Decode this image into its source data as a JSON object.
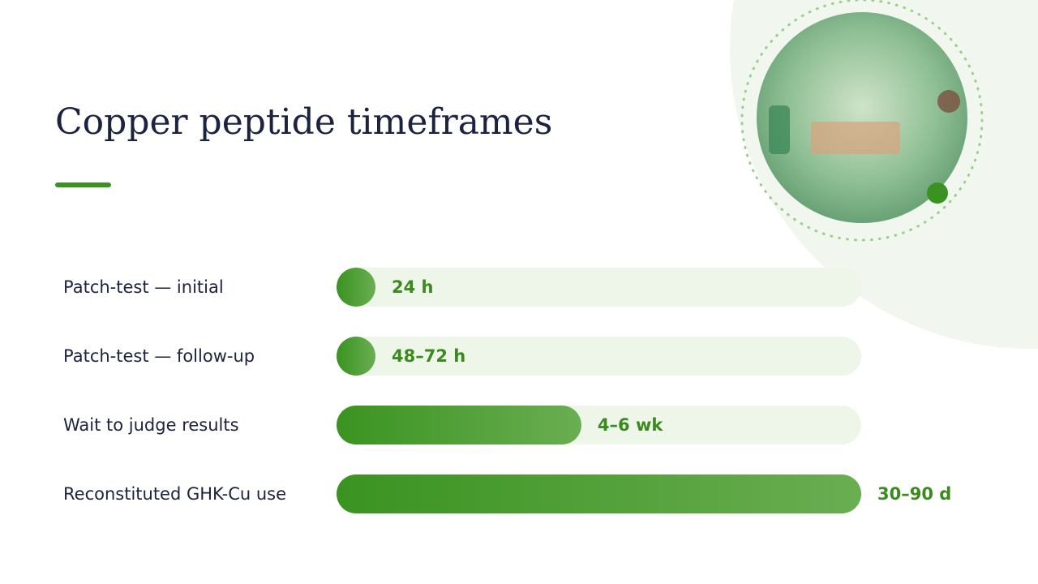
{
  "chart_data": {
    "type": "bar",
    "orientation": "horizontal",
    "title": "Copper peptide timeframes",
    "categories": [
      "Patch-test — initial",
      "Patch-test — follow-up",
      "Wait to judge results",
      "Reconstituted GHK-Cu use"
    ],
    "values": [
      1,
      3,
      42,
      90
    ],
    "value_labels": [
      "24 h",
      "48–72 h",
      "4–6 wk",
      "30–90 d"
    ],
    "xlim": [
      0,
      90
    ],
    "color": "#3a9320"
  }
}
